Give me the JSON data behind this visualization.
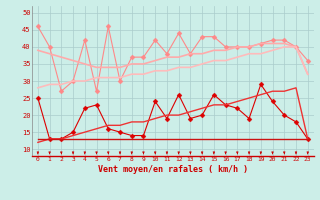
{
  "x": [
    0,
    1,
    2,
    3,
    4,
    5,
    6,
    7,
    8,
    9,
    10,
    11,
    12,
    13,
    14,
    15,
    16,
    17,
    18,
    19,
    20,
    21,
    22,
    23
  ],
  "background_color": "#cceee8",
  "grid_color": "#aacccc",
  "xlabel": "Vent moyen/en rafales ( km/h )",
  "xlabel_color": "#cc0000",
  "ylim": [
    8,
    52
  ],
  "yticks": [
    10,
    15,
    20,
    25,
    30,
    35,
    40,
    45,
    50
  ],
  "series": [
    {
      "name": "rafales_scattered",
      "color": "#ff8888",
      "linewidth": 0.8,
      "marker": "D",
      "markersize": 2.5,
      "values": [
        46,
        40,
        27,
        30,
        42,
        27,
        46,
        30,
        37,
        37,
        42,
        38,
        44,
        38,
        43,
        43,
        40,
        40,
        40,
        41,
        42,
        42,
        40,
        36
      ]
    },
    {
      "name": "rafales_trend_upper",
      "color": "#ffaaaa",
      "linewidth": 1.2,
      "marker": null,
      "markersize": 0,
      "values": [
        39,
        38,
        37,
        36,
        35,
        34,
        34,
        34,
        35,
        35,
        36,
        37,
        37,
        38,
        38,
        39,
        39,
        40,
        40,
        41,
        41,
        41,
        40,
        32
      ]
    },
    {
      "name": "rafales_trend_lower",
      "color": "#ffbbbb",
      "linewidth": 1.2,
      "marker": null,
      "markersize": 0,
      "values": [
        28,
        29,
        29,
        30,
        30,
        31,
        31,
        31,
        32,
        32,
        33,
        33,
        34,
        34,
        35,
        36,
        36,
        37,
        38,
        38,
        39,
        40,
        40,
        32
      ]
    },
    {
      "name": "vent_moyen_scattered",
      "color": "#dd0000",
      "linewidth": 0.8,
      "marker": "D",
      "markersize": 2.5,
      "values": [
        25,
        13,
        13,
        15,
        22,
        23,
        16,
        15,
        14,
        14,
        24,
        19,
        26,
        19,
        20,
        26,
        23,
        22,
        19,
        29,
        24,
        20,
        18,
        13
      ]
    },
    {
      "name": "moyen_trend1",
      "color": "#ee3333",
      "linewidth": 1.0,
      "marker": null,
      "markersize": 0,
      "values": [
        12,
        13,
        13,
        14,
        15,
        16,
        17,
        17,
        18,
        18,
        19,
        20,
        20,
        21,
        22,
        23,
        23,
        24,
        25,
        26,
        27,
        27,
        28,
        13
      ]
    },
    {
      "name": "moyen_flat",
      "color": "#cc1111",
      "linewidth": 1.0,
      "marker": null,
      "markersize": 0,
      "values": [
        13,
        13,
        13,
        13,
        13,
        13,
        13,
        13,
        13,
        13,
        13,
        13,
        13,
        13,
        13,
        13,
        13,
        13,
        13,
        13,
        13,
        13,
        13,
        13
      ]
    }
  ],
  "wind_arrows_color": "#cc0000"
}
